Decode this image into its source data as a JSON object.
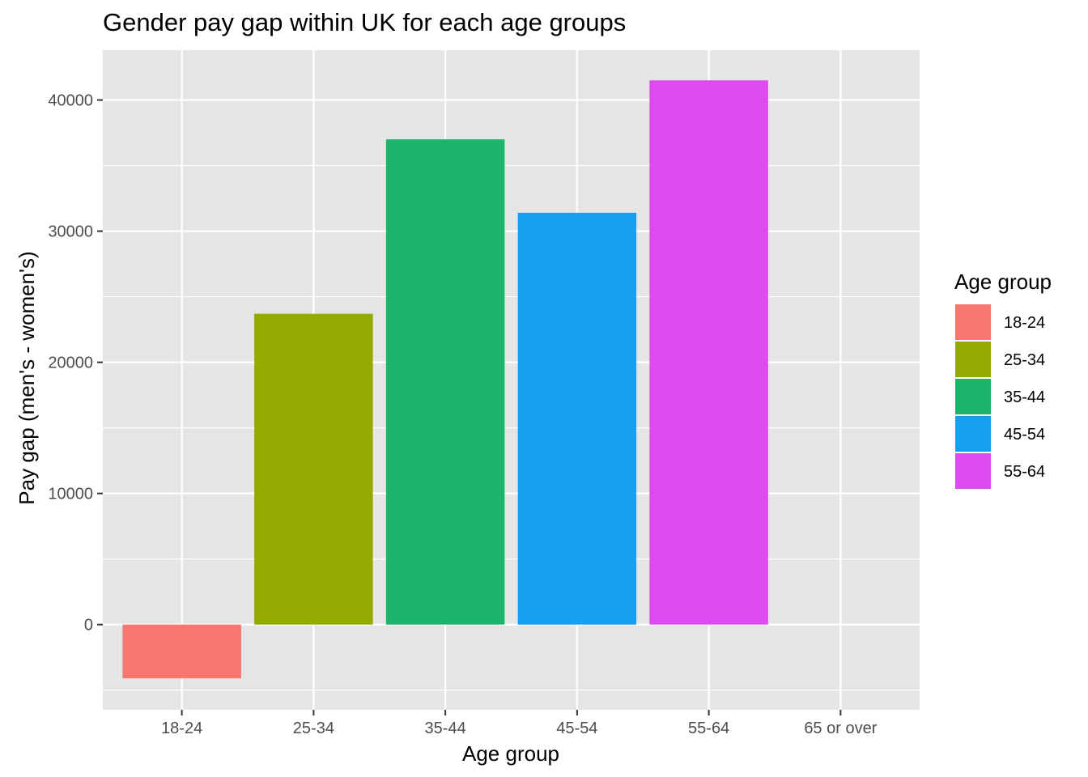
{
  "chart_data": {
    "type": "bar",
    "title": "Gender pay gap within UK for each age groups",
    "xlabel": "Age group",
    "ylabel": "Pay gap (men's - women's)",
    "categories": [
      "18-24",
      "25-34",
      "35-44",
      "45-54",
      "55-64",
      "65 or over"
    ],
    "values": [
      -4100,
      23700,
      37000,
      31400,
      41500,
      null
    ],
    "colors": [
      "#F8766D",
      "#93AA00",
      "#1BB46D",
      "#18A0F0",
      "#DC4AF0",
      null
    ],
    "ylim": [
      -6500,
      43800
    ],
    "yticks": [
      0,
      10000,
      20000,
      30000,
      40000
    ],
    "ytick_labels": [
      "0",
      "10000",
      "20000",
      "30000",
      "40000"
    ],
    "grid": true,
    "panel_background": "#E5E5E5",
    "grid_color": "#FFFFFF",
    "legend": {
      "title": "Age group",
      "placement": "right",
      "entries": [
        {
          "label": "18-24",
          "color": "#F8766D"
        },
        {
          "label": "25-34",
          "color": "#93AA00"
        },
        {
          "label": "35-44",
          "color": "#1BB46D"
        },
        {
          "label": "45-54",
          "color": "#18A0F0"
        },
        {
          "label": "55-64",
          "color": "#DC4AF0"
        }
      ]
    }
  }
}
